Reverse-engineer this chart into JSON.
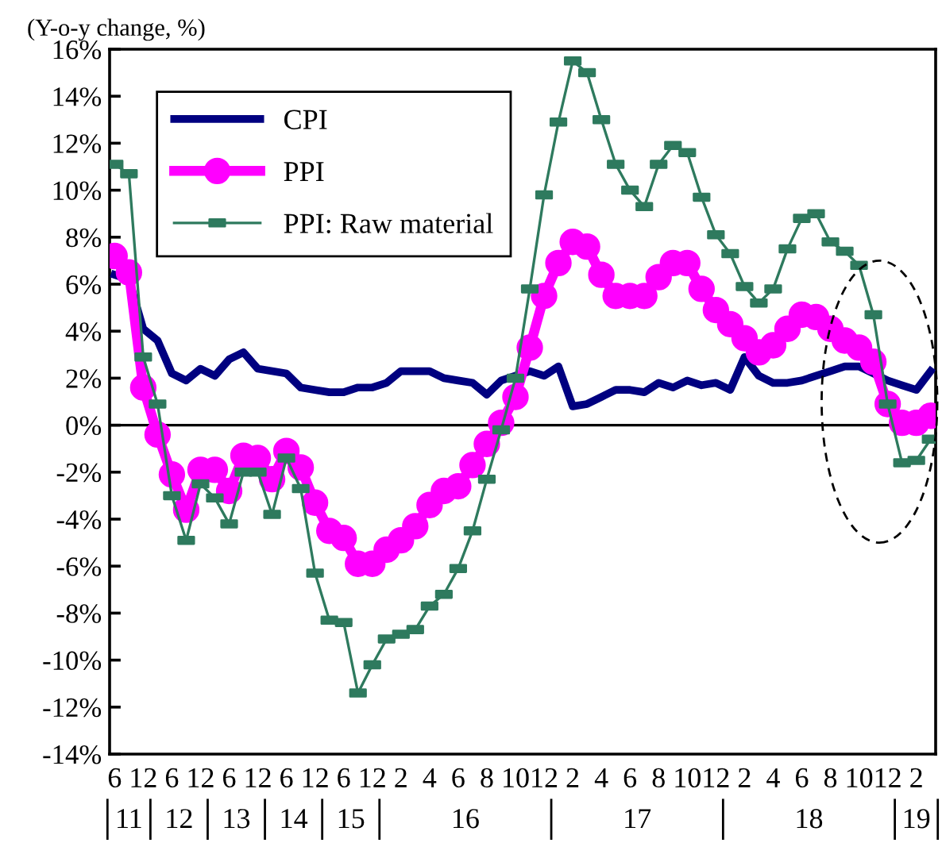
{
  "chart_data": {
    "type": "line",
    "ylabel": "(Y-o-y change, %)",
    "categories": [
      "6",
      null,
      "12",
      null,
      "6",
      null,
      "12",
      null,
      "6",
      null,
      "12",
      null,
      "6",
      null,
      "12",
      null,
      "6",
      null,
      "12",
      null,
      "2",
      null,
      "4",
      null,
      "6",
      null,
      "8",
      null,
      "10",
      null,
      "12",
      null,
      "2",
      null,
      "4",
      null,
      "6",
      null,
      "8",
      null,
      "10",
      null,
      "12",
      null,
      "2",
      null,
      "4",
      null,
      "6",
      null,
      "8",
      null,
      "10",
      null,
      "12",
      null,
      "2",
      null
    ],
    "annotations": [
      "11",
      "12",
      "13",
      "14",
      "15",
      "16",
      "17",
      "18",
      "19"
    ],
    "series": [
      {
        "name": "CPI",
        "color": "#000080",
        "marker": "none",
        "values": [
          6.4,
          6.2,
          4.1,
          3.6,
          2.2,
          1.9,
          2.4,
          2.1,
          2.8,
          3.1,
          2.4,
          2.3,
          2.2,
          1.6,
          1.5,
          1.4,
          1.4,
          1.6,
          1.6,
          1.8,
          2.3,
          2.3,
          2.3,
          2.0,
          1.9,
          1.8,
          1.3,
          1.9,
          2.1,
          2.3,
          2.1,
          2.5,
          0.8,
          0.9,
          1.2,
          1.5,
          1.5,
          1.4,
          1.8,
          1.6,
          1.9,
          1.7,
          1.8,
          1.5,
          2.9,
          2.1,
          1.8,
          1.8,
          1.9,
          2.1,
          2.3,
          2.5,
          2.5,
          2.2,
          1.9,
          1.7,
          1.5,
          2.3
        ]
      },
      {
        "name": "PPI",
        "color": "#ff00ff",
        "marker": "circle",
        "values": [
          7.2,
          6.5,
          1.6,
          -0.4,
          -2.1,
          -3.6,
          -1.9,
          -1.9,
          -2.8,
          -1.3,
          -1.4,
          -2.3,
          -1.1,
          -1.8,
          -3.3,
          -4.5,
          -4.8,
          -5.9,
          -5.9,
          -5.3,
          -4.9,
          -4.3,
          -3.4,
          -2.8,
          -2.6,
          -1.7,
          -0.8,
          0.1,
          1.2,
          3.3,
          5.5,
          6.9,
          7.8,
          7.6,
          6.4,
          5.5,
          5.5,
          5.5,
          6.3,
          6.9,
          6.9,
          5.8,
          4.9,
          4.3,
          3.7,
          3.1,
          3.4,
          4.1,
          4.7,
          4.6,
          4.1,
          3.6,
          3.3,
          2.7,
          0.9,
          0.1,
          0.1,
          0.4
        ]
      },
      {
        "name": "PPI: Raw material",
        "color": "#2e7a5e",
        "marker": "square",
        "values": [
          11.1,
          10.7,
          2.9,
          0.9,
          -3.0,
          -4.9,
          -2.5,
          -3.1,
          -4.2,
          -2.0,
          -2.0,
          -3.8,
          -1.4,
          -2.7,
          -6.3,
          -8.3,
          -8.4,
          -11.4,
          -10.2,
          -9.1,
          -8.9,
          -8.7,
          -7.7,
          -7.2,
          -6.1,
          -4.5,
          -2.3,
          -0.2,
          2.0,
          5.8,
          9.8,
          12.9,
          15.5,
          15.0,
          13.0,
          11.1,
          10.0,
          9.3,
          11.1,
          11.9,
          11.6,
          9.7,
          8.1,
          7.3,
          5.9,
          5.2,
          5.8,
          7.5,
          8.8,
          9.0,
          7.8,
          7.4,
          6.8,
          4.7,
          0.9,
          -1.6,
          -1.5,
          -0.6
        ]
      }
    ],
    "ylim": [
      -14,
      16
    ],
    "yticks": [
      {
        "value": -14,
        "label": "-14%"
      },
      {
        "value": -12,
        "label": "-12%"
      },
      {
        "value": -10,
        "label": "-10%"
      },
      {
        "value": -8,
        "label": "-8%"
      },
      {
        "value": -6,
        "label": "-6%"
      },
      {
        "value": -4,
        "label": "-4%"
      },
      {
        "value": -2,
        "label": "-2%"
      },
      {
        "value": 0,
        "label": "0%"
      },
      {
        "value": 2,
        "label": "2%"
      },
      {
        "value": 4,
        "label": "4%"
      },
      {
        "value": 6,
        "label": "6%"
      },
      {
        "value": 8,
        "label": "8%"
      },
      {
        "value": 10,
        "label": "10%"
      },
      {
        "value": 12,
        "label": "12%"
      },
      {
        "value": 14,
        "label": "14%"
      },
      {
        "value": 16,
        "label": "16%"
      }
    ],
    "ref_lines": [
      {
        "axis": "y",
        "value": 0,
        "color": "#000000"
      }
    ],
    "grid": false,
    "legend": "top left"
  }
}
